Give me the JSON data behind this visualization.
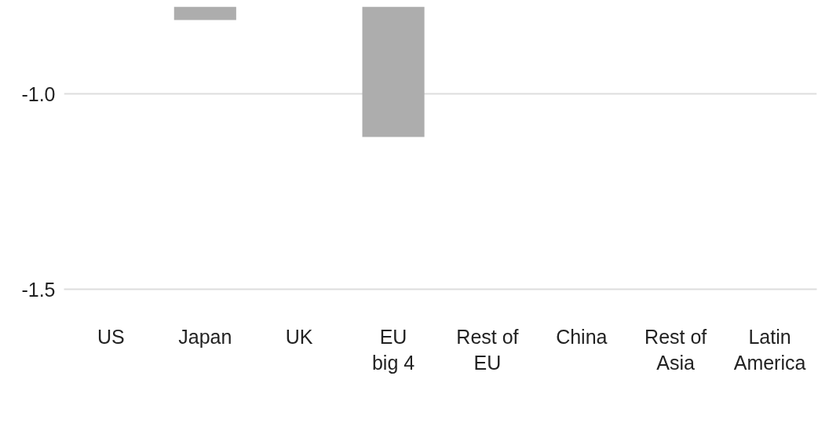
{
  "chart_data": {
    "type": "bar",
    "categories": [
      "US",
      "Japan",
      "UK",
      "EU\nbig 4",
      "Rest of\nEU",
      "China",
      "Rest of\nAsia",
      "Latin\nAmerica"
    ],
    "values": [
      null,
      -0.81,
      null,
      -1.11,
      null,
      null,
      null,
      null
    ],
    "colors": [
      "#adadad",
      "#adadad",
      "#f4f4f4",
      "#adadad",
      "#adadad",
      "#adadad",
      "#adadad",
      "#adadad"
    ],
    "ylim": [
      -1.5,
      -0.776
    ],
    "yticks": [
      {
        "value": -1.5,
        "label": "-1.5"
      },
      {
        "value": -1.0,
        "label": "-1.0"
      }
    ],
    "grid": "y"
  }
}
